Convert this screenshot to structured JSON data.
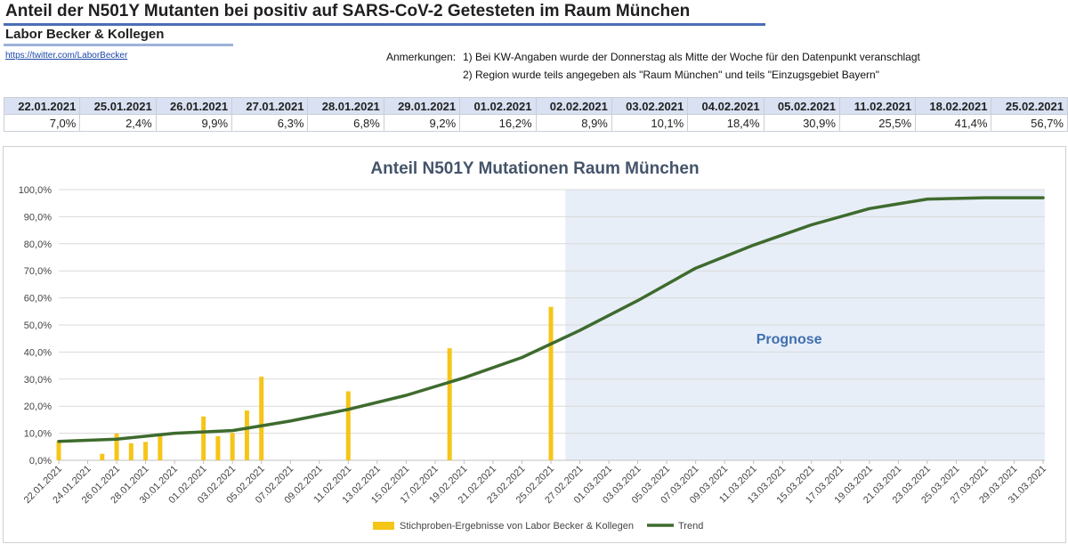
{
  "header": {
    "title": "Anteil der N501Y Mutanten bei positiv auf SARS-CoV-2 Getesteten im Raum München",
    "subtitle": "Labor Becker & Kollegen",
    "link": "https://twitter.com/LaborBecker"
  },
  "notes": {
    "label": "Anmerkungen:",
    "items": [
      "1) Bei KW-Angaben wurde der Donnerstag als Mitte der Woche für den Datenpunkt veranschlagt",
      "2) Region wurde teils angegeben als \"Raum München\" und teils \"Einzugsgebiet Bayern\""
    ]
  },
  "table": {
    "dates": [
      "22.01.2021",
      "25.01.2021",
      "26.01.2021",
      "27.01.2021",
      "28.01.2021",
      "29.01.2021",
      "01.02.2021",
      "02.02.2021",
      "03.02.2021",
      "04.02.2021",
      "05.02.2021",
      "11.02.2021",
      "18.02.2021",
      "25.02.2021"
    ],
    "values": [
      "7,0%",
      "2,4%",
      "9,9%",
      "6,3%",
      "6,8%",
      "9,2%",
      "16,2%",
      "8,9%",
      "10,1%",
      "18,4%",
      "30,9%",
      "25,5%",
      "41,4%",
      "56,7%"
    ]
  },
  "chart_data": {
    "type": "bar",
    "title": "Anteil N501Y Mutationen Raum München",
    "xlabel": "",
    "ylabel": "",
    "ylim": [
      0,
      100
    ],
    "yticks": [
      "0,0%",
      "10,0%",
      "20,0%",
      "30,0%",
      "40,0%",
      "50,0%",
      "60,0%",
      "70,0%",
      "80,0%",
      "90,0%",
      "100,0%"
    ],
    "x_start": "22.01.2021",
    "x_end": "31.03.2021",
    "xtick_labels": [
      "22.01.2021",
      "24.01.2021",
      "26.01.2021",
      "28.01.2021",
      "30.01.2021",
      "01.02.2021",
      "03.02.2021",
      "05.02.2021",
      "07.02.2021",
      "09.02.2021",
      "11.02.2021",
      "13.02.2021",
      "15.02.2021",
      "17.02.2021",
      "19.02.2021",
      "21.02.2021",
      "23.02.2021",
      "25.02.2021",
      "27.02.2021",
      "01.03.2021",
      "03.03.2021",
      "05.03.2021",
      "07.03.2021",
      "09.03.2021",
      "11.03.2021",
      "13.03.2021",
      "15.03.2021",
      "17.03.2021",
      "19.03.2021",
      "21.03.2021",
      "23.03.2021",
      "25.03.2021",
      "27.03.2021",
      "29.03.2021",
      "31.03.2021"
    ],
    "bars": {
      "name": "Stichproben-Ergebnisse von Labor Becker & Kollegen",
      "color": "#f5c518",
      "day_index": [
        0,
        3,
        4,
        5,
        6,
        7,
        10,
        11,
        12,
        13,
        14,
        20,
        27,
        34
      ],
      "values": [
        7.0,
        2.4,
        9.9,
        6.3,
        6.8,
        9.2,
        16.2,
        8.9,
        10.1,
        18.4,
        30.9,
        25.5,
        41.4,
        56.7
      ]
    },
    "trend": {
      "name": "Trend",
      "color": "#3e6b2e",
      "day_index": [
        0,
        4,
        8,
        12,
        16,
        20,
        24,
        28,
        32,
        36,
        40,
        44,
        48,
        52,
        56,
        60,
        64,
        68
      ],
      "values": [
        7.0,
        7.8,
        10.0,
        11.0,
        14.5,
        18.8,
        24.0,
        30.5,
        38.0,
        48.0,
        59.0,
        71.0,
        79.5,
        87.0,
        93.0,
        96.5,
        97.0,
        97.0
      ]
    },
    "forecast": {
      "label": "Prognose",
      "start_day": 35,
      "color": "#e8eef7",
      "label_color": "#3f6fb0"
    }
  }
}
